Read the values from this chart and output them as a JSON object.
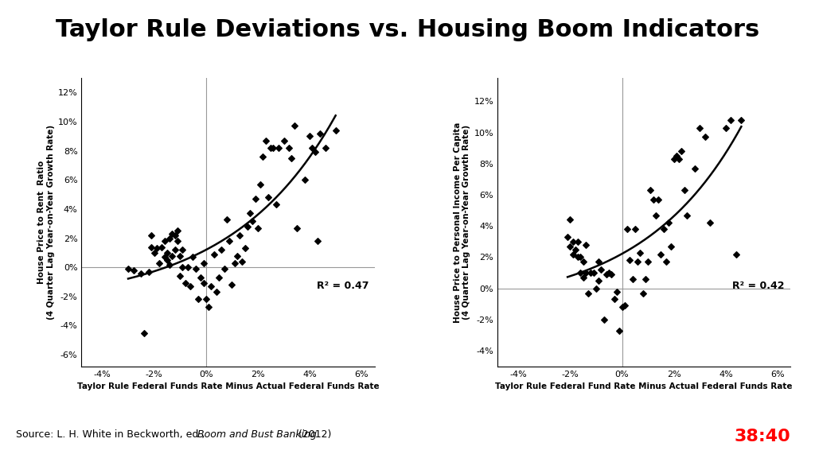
{
  "title": "Taylor Rule Deviations vs. Housing Boom Indicators",
  "title_fontsize": 22,
  "background_color": "#ffffff",
  "plot1": {
    "xlabel": "Taylor Rule Federal Funds Rate Minus Actual Federal Funds Rate",
    "ylabel": "House Price to Rent  Ratio\n(4 Quarter Lag Year-on-Year Growth Rate)",
    "r2_label": "R² = 0.47",
    "xlim": [
      -0.048,
      0.065
    ],
    "ylim": [
      -0.068,
      0.13
    ],
    "xticks": [
      -0.04,
      -0.02,
      0.0,
      0.02,
      0.04,
      0.06
    ],
    "yticks": [
      -0.06,
      -0.04,
      -0.02,
      0.0,
      0.02,
      0.04,
      0.06,
      0.08,
      0.1,
      0.12
    ],
    "x": [
      -0.03,
      -0.028,
      -0.025,
      -0.024,
      -0.022,
      -0.021,
      -0.021,
      -0.02,
      -0.019,
      -0.018,
      -0.017,
      -0.016,
      -0.016,
      -0.015,
      -0.015,
      -0.014,
      -0.014,
      -0.013,
      -0.013,
      -0.012,
      -0.012,
      -0.011,
      -0.011,
      -0.01,
      -0.01,
      -0.009,
      -0.009,
      -0.008,
      -0.007,
      -0.006,
      -0.005,
      -0.004,
      -0.003,
      -0.002,
      -0.001,
      -0.001,
      0.0,
      0.001,
      0.002,
      0.003,
      0.004,
      0.005,
      0.006,
      0.007,
      0.008,
      0.009,
      0.01,
      0.011,
      0.012,
      0.013,
      0.014,
      0.015,
      0.016,
      0.017,
      0.018,
      0.019,
      0.02,
      0.021,
      0.022,
      0.023,
      0.024,
      0.025,
      0.026,
      0.027,
      0.028,
      0.03,
      0.032,
      0.033,
      0.034,
      0.035,
      0.038,
      0.04,
      0.041,
      0.042,
      0.043,
      0.044,
      0.046,
      0.05
    ],
    "y": [
      -0.001,
      -0.002,
      -0.004,
      -0.045,
      -0.003,
      0.014,
      0.022,
      0.01,
      0.013,
      0.003,
      0.014,
      0.007,
      0.018,
      0.005,
      0.01,
      0.002,
      0.02,
      0.023,
      0.008,
      0.012,
      0.022,
      0.018,
      0.025,
      -0.006,
      0.008,
      0.012,
      0.0,
      -0.011,
      0.0,
      -0.013,
      0.007,
      -0.001,
      -0.022,
      -0.007,
      -0.011,
      0.003,
      -0.022,
      -0.027,
      -0.013,
      0.009,
      -0.017,
      -0.007,
      0.012,
      -0.001,
      0.033,
      0.018,
      -0.012,
      0.003,
      0.008,
      0.022,
      0.004,
      0.013,
      0.028,
      0.037,
      0.032,
      0.047,
      0.027,
      0.057,
      0.076,
      0.087,
      0.048,
      0.082,
      0.082,
      0.043,
      0.082,
      0.087,
      0.082,
      0.075,
      0.097,
      0.027,
      0.06,
      0.09,
      0.082,
      0.079,
      0.018,
      0.092,
      0.082,
      0.094
    ]
  },
  "plot2": {
    "xlabel": "Taylor Rule Federal Fund Rate Minus Actual Federal Funds Rate",
    "ylabel": "House Price to Personal Income Per Capita\n(4 Quarter Lag Year-on-Year Growth Rate)",
    "r2_label": "R² = 0.42",
    "xlim": [
      -0.048,
      0.065
    ],
    "ylim": [
      -0.05,
      0.135
    ],
    "xticks": [
      -0.04,
      -0.02,
      0.0,
      0.02,
      0.04,
      0.06
    ],
    "yticks": [
      -0.04,
      -0.02,
      0.0,
      0.02,
      0.04,
      0.06,
      0.08,
      0.1,
      0.12
    ],
    "x": [
      -0.021,
      -0.02,
      -0.02,
      -0.019,
      -0.019,
      -0.018,
      -0.017,
      -0.017,
      -0.016,
      -0.016,
      -0.015,
      -0.015,
      -0.014,
      -0.014,
      -0.013,
      -0.012,
      -0.011,
      -0.01,
      -0.009,
      -0.009,
      -0.008,
      -0.007,
      -0.006,
      -0.005,
      -0.004,
      -0.003,
      -0.002,
      -0.001,
      0.0,
      0.001,
      0.002,
      0.003,
      0.004,
      0.005,
      0.006,
      0.007,
      0.008,
      0.009,
      0.01,
      0.011,
      0.012,
      0.013,
      0.014,
      0.015,
      0.016,
      0.017,
      0.018,
      0.019,
      0.02,
      0.021,
      0.022,
      0.023,
      0.024,
      0.025,
      0.028,
      0.03,
      0.032,
      0.034,
      0.04,
      0.042,
      0.044,
      0.046
    ],
    "y": [
      0.033,
      0.027,
      0.044,
      0.022,
      0.03,
      0.025,
      0.02,
      0.03,
      0.01,
      0.02,
      0.007,
      0.017,
      0.01,
      0.028,
      -0.003,
      0.01,
      0.01,
      0.0,
      0.005,
      0.017,
      0.012,
      -0.02,
      0.009,
      0.01,
      0.009,
      -0.007,
      -0.002,
      -0.027,
      -0.012,
      -0.011,
      0.038,
      0.018,
      0.006,
      0.038,
      0.017,
      0.023,
      -0.003,
      0.006,
      0.017,
      0.063,
      0.057,
      0.047,
      0.057,
      0.022,
      0.038,
      0.017,
      0.042,
      0.027,
      0.083,
      0.085,
      0.083,
      0.088,
      0.063,
      0.047,
      0.077,
      0.103,
      0.097,
      0.042,
      0.103,
      0.108,
      0.022,
      0.108
    ]
  },
  "source_normal1": "Source: L. H. White in Beckworth, ed., ",
  "source_italic": "Boom and Bust Banking",
  "source_normal2": " (2012)",
  "timer_text": "38:40",
  "timer_color": "#ff0000"
}
